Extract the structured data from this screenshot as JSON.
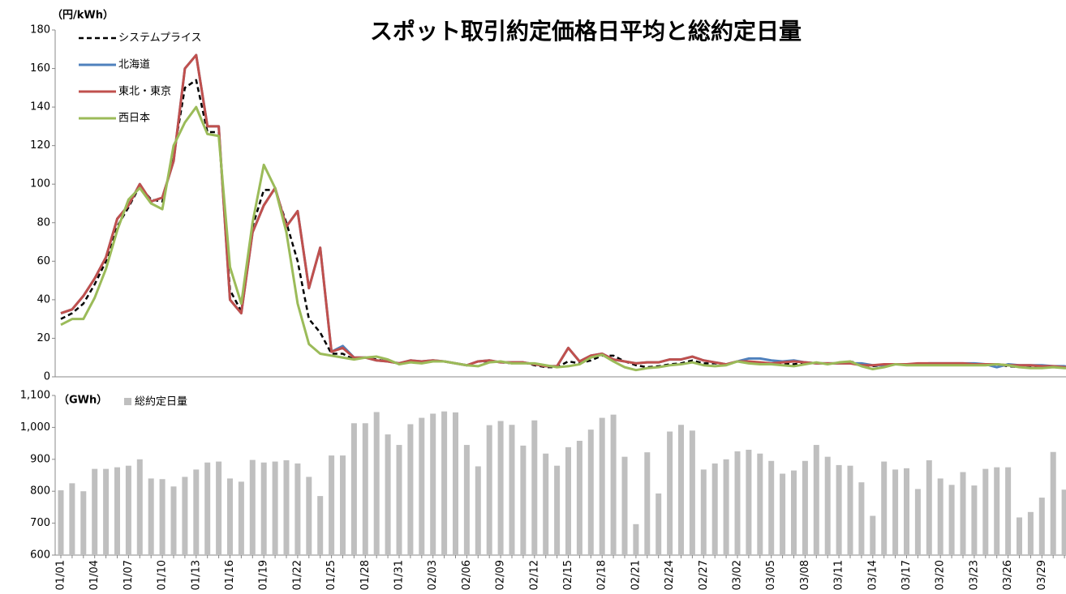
{
  "chart_data": [
    {
      "type": "line",
      "title": "スポット取引約定価格日平均と総約定日量",
      "ylabel": "（円/kWh）",
      "ylim": [
        0,
        180
      ],
      "yticks": [
        0,
        20,
        40,
        60,
        80,
        100,
        120,
        140,
        160,
        180
      ],
      "legend": "upper left",
      "series": [
        {
          "name": "システムプライス",
          "color": "#000000",
          "dash": true,
          "values": [
            30,
            33,
            38,
            48,
            60,
            78,
            88,
            99,
            92,
            91,
            115,
            150,
            154,
            127,
            127,
            45,
            34,
            78,
            97,
            97,
            80,
            60,
            30,
            23,
            12,
            12,
            9,
            10,
            9,
            8,
            7,
            8,
            8,
            8.5,
            8,
            7,
            6,
            8,
            8,
            7.5,
            7,
            7.5,
            6,
            5,
            5,
            8,
            7,
            8.5,
            11,
            11,
            8,
            6,
            5,
            5.5,
            6.5,
            7,
            8.5,
            7,
            7,
            6.5,
            8,
            8,
            7.5,
            7,
            7,
            6.5,
            7.5,
            7,
            7,
            7,
            8,
            6.5,
            5.5,
            6,
            6.5,
            6.5,
            6.5,
            6.5,
            6.5,
            6.5,
            6.5,
            6,
            6,
            6.5,
            5.5,
            5,
            5,
            5,
            5,
            5,
            4.5
          ]
        },
        {
          "name": "北海道",
          "color": "#4f81bd",
          "values": [
            33,
            35,
            42,
            51,
            62,
            82,
            89,
            100,
            91,
            93,
            112,
            160,
            167,
            130,
            130,
            40,
            33,
            75,
            89,
            98,
            78,
            86,
            46,
            67,
            13,
            16,
            10,
            10,
            8.5,
            8,
            7,
            8.5,
            8,
            8.5,
            8,
            7,
            6,
            8,
            8.5,
            7.5,
            7.5,
            7.5,
            6.5,
            5.5,
            5.5,
            15,
            8,
            11,
            12,
            9,
            8,
            7,
            7.5,
            7.5,
            9,
            9,
            10.5,
            8.5,
            7.5,
            6.5,
            8,
            9.5,
            9.5,
            8.5,
            8,
            8.5,
            7.5,
            7,
            7,
            7,
            7,
            7,
            6,
            6,
            6.5,
            6.5,
            6.5,
            7,
            7,
            7,
            7,
            7,
            6.5,
            5,
            6.5,
            6,
            6,
            6,
            5.5,
            5.5,
            4.5
          ]
        },
        {
          "name": "東北・東京",
          "color": "#c0504d",
          "values": [
            33,
            35,
            42,
            51,
            62,
            82,
            89,
            100,
            91,
            93,
            112,
            160,
            167,
            130,
            130,
            40,
            33,
            75,
            89,
            98,
            78,
            86,
            46,
            67,
            13,
            15,
            10,
            10,
            8.5,
            8,
            7,
            8.5,
            8,
            8.5,
            8,
            7,
            6,
            8,
            8.5,
            7.5,
            7.5,
            7.5,
            6.5,
            5.5,
            5.5,
            15,
            8,
            11,
            12,
            9,
            8,
            7,
            7.5,
            7.5,
            9,
            9,
            10.5,
            8.5,
            7.5,
            6.5,
            8,
            8,
            7.5,
            7,
            7.5,
            8,
            7.5,
            7,
            7,
            7,
            7,
            6,
            6,
            6.5,
            6.5,
            6.5,
            7,
            7,
            7,
            7,
            7,
            6.5,
            6.5,
            6.5,
            6,
            6,
            6,
            5.5,
            5.5,
            5,
            4.5
          ]
        },
        {
          "name": "西日本",
          "color": "#9bbb59",
          "values": [
            27,
            30,
            30,
            41,
            56,
            76,
            92,
            98,
            90,
            87,
            120,
            132,
            140,
            126,
            125,
            57,
            38,
            80,
            110,
            98,
            75,
            38,
            17,
            12,
            11,
            10,
            9,
            10,
            10.5,
            9,
            6.5,
            7.5,
            7,
            8,
            8,
            7,
            6,
            5.5,
            7.5,
            8,
            7,
            7,
            7,
            6,
            5,
            5.5,
            6.5,
            10,
            11.5,
            8,
            5,
            3.5,
            4.5,
            5,
            6,
            6.5,
            7.5,
            6,
            5.5,
            6,
            8,
            7,
            6.5,
            6.5,
            6,
            5.5,
            6.5,
            7.5,
            6.5,
            7.5,
            8,
            5.5,
            4,
            5,
            6.5,
            6,
            6,
            6,
            6,
            6,
            6,
            6,
            6,
            6.5,
            6,
            5,
            4.5,
            4.5,
            5,
            4.5,
            4.5
          ]
        }
      ]
    },
    {
      "type": "bar",
      "ylabel": "（GWh）",
      "ylim": [
        600,
        1100
      ],
      "yticks": [
        600,
        700,
        800,
        900,
        {
          "value": 1000,
          "label": "1,000"
        },
        {
          "value": 1100,
          "label": "1,100"
        }
      ],
      "categories": [
        "01/01",
        null,
        null,
        "01/04",
        null,
        null,
        "01/07",
        null,
        null,
        "01/10",
        null,
        null,
        "01/13",
        null,
        null,
        "01/16",
        null,
        null,
        "01/19",
        null,
        null,
        "01/22",
        null,
        null,
        "01/25",
        null,
        null,
        "01/28",
        null,
        null,
        "01/31",
        null,
        null,
        "02/03",
        null,
        null,
        "02/06",
        null,
        null,
        "02/09",
        null,
        null,
        "02/12",
        null,
        null,
        "02/15",
        null,
        null,
        "02/18",
        null,
        null,
        "02/21",
        null,
        null,
        "02/24",
        null,
        null,
        "02/27",
        null,
        null,
        "03/02",
        null,
        null,
        "03/05",
        null,
        null,
        "03/08",
        null,
        null,
        "03/11",
        null,
        null,
        "03/14",
        null,
        null,
        "03/17",
        null,
        null,
        "03/20",
        null,
        null,
        "03/23",
        null,
        null,
        "03/26",
        null,
        null,
        "03/29",
        null,
        null
      ],
      "series": [
        {
          "name": "総約定日量",
          "color": "#bfbfbf",
          "values": [
            803,
            825,
            800,
            870,
            870,
            875,
            880,
            900,
            840,
            838,
            815,
            845,
            868,
            890,
            893,
            840,
            830,
            898,
            890,
            893,
            897,
            887,
            845,
            785,
            912,
            912,
            1013,
            1013,
            1048,
            978,
            945,
            1010,
            1030,
            1043,
            1050,
            1047,
            945,
            878,
            1007,
            1020,
            1008,
            943,
            1022,
            918,
            880,
            938,
            958,
            993,
            1030,
            1040,
            908,
            697,
            922,
            793,
            987,
            1008,
            990,
            868,
            887,
            900,
            925,
            930,
            918,
            895,
            855,
            865,
            895,
            945,
            908,
            882,
            880,
            828,
            723,
            893,
            868,
            872,
            807,
            897,
            840,
            820,
            860,
            818,
            870,
            875,
            875,
            718,
            735,
            780,
            923,
            805
          ]
        }
      ]
    }
  ]
}
